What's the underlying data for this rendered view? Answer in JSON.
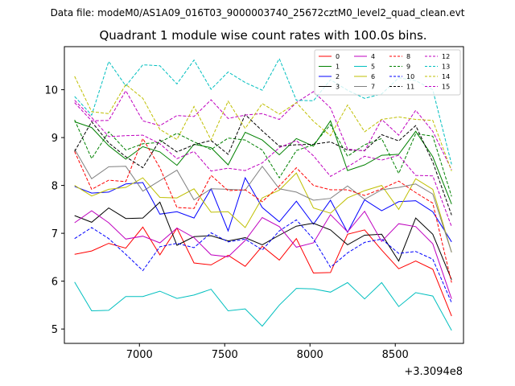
{
  "header": {
    "data_file": "Data file: modeM0/AS1A09_016T03_9000003740_25672cztM0_level2_quad_clean.evt",
    "title": "Quadrant 1 module wise count rates with 100.0s bins."
  },
  "chart_data": {
    "type": "line",
    "title": "Quadrant 1 module wise count rates with 100.0s bins.",
    "xlabel": "",
    "ylabel": "",
    "x_offset_label": "+3.3094e8",
    "xlim": [
      6560,
      8900
    ],
    "ylim": [
      4.7,
      10.9
    ],
    "xticks": [
      7000,
      7500,
      8000,
      8500
    ],
    "yticks": [
      5,
      6,
      7,
      8,
      9,
      10
    ],
    "legend_position": "top-right",
    "x": [
      6620,
      6720,
      6820,
      6920,
      7020,
      7120,
      7220,
      7320,
      7420,
      7520,
      7620,
      7720,
      7820,
      7920,
      8020,
      8120,
      8220,
      8320,
      8420,
      8520,
      8620,
      8720,
      8830
    ],
    "series": [
      {
        "name": "0",
        "color": "#ff0000",
        "dash": "solid",
        "values": [
          6.56,
          6.63,
          6.79,
          6.69,
          7.13,
          6.55,
          7.11,
          6.38,
          6.34,
          6.54,
          6.31,
          6.73,
          6.44,
          6.89,
          6.17,
          6.18,
          6.98,
          7.07,
          6.65,
          6.26,
          6.42,
          6.25,
          5.27
        ]
      },
      {
        "name": "1",
        "color": "#008000",
        "dash": "solid",
        "values": [
          9.33,
          9.21,
          8.83,
          8.55,
          8.81,
          8.7,
          8.42,
          8.86,
          8.79,
          8.43,
          9.11,
          8.95,
          8.64,
          8.98,
          8.82,
          9.35,
          8.31,
          8.43,
          8.63,
          8.65,
          9.13,
          8.6,
          7.61
        ]
      },
      {
        "name": "2",
        "color": "#0000ff",
        "dash": "solid",
        "values": [
          7.98,
          7.84,
          7.86,
          8.03,
          8.06,
          7.4,
          7.45,
          7.32,
          7.93,
          7.05,
          8.16,
          7.54,
          7.24,
          7.67,
          7.19,
          7.69,
          7.02,
          7.7,
          7.47,
          7.66,
          7.68,
          7.45,
          6.82
        ]
      },
      {
        "name": "3",
        "color": "#000000",
        "dash": "solid",
        "values": [
          7.37,
          7.23,
          7.53,
          7.31,
          7.32,
          7.65,
          6.75,
          6.93,
          6.95,
          6.84,
          6.91,
          6.76,
          6.96,
          7.15,
          7.21,
          7.07,
          6.76,
          6.96,
          6.98,
          6.42,
          7.32,
          6.98,
          6.03
        ]
      },
      {
        "name": "4",
        "color": "#bf00bf",
        "dash": "solid",
        "values": [
          7.22,
          7.47,
          7.22,
          6.88,
          6.94,
          6.8,
          7.11,
          6.91,
          6.55,
          6.51,
          6.85,
          7.33,
          7.14,
          6.71,
          6.8,
          7.39,
          7.03,
          7.46,
          6.83,
          7.2,
          7.14,
          6.78,
          5.63
        ]
      },
      {
        "name": "5",
        "color": "#00bfbf",
        "dash": "solid",
        "values": [
          5.98,
          5.38,
          5.39,
          5.68,
          5.68,
          5.79,
          5.64,
          5.71,
          5.83,
          5.38,
          5.42,
          5.06,
          5.5,
          5.85,
          5.84,
          5.77,
          5.97,
          5.63,
          5.97,
          5.47,
          5.76,
          5.69,
          4.97
        ]
      },
      {
        "name": "6",
        "color": "#bfbf00",
        "dash": "solid",
        "values": [
          8.0,
          7.78,
          7.92,
          7.96,
          8.16,
          7.75,
          7.74,
          7.93,
          7.44,
          7.45,
          7.12,
          7.74,
          7.9,
          8.26,
          7.53,
          7.42,
          7.74,
          7.89,
          8.0,
          7.5,
          8.14,
          7.92,
          6.6
        ]
      },
      {
        "name": "7",
        "color": "#808080",
        "dash": "solid",
        "values": [
          8.76,
          8.14,
          8.39,
          8.4,
          7.88,
          8.1,
          8.32,
          7.7,
          7.93,
          7.92,
          7.9,
          8.4,
          7.93,
          7.86,
          7.69,
          7.73,
          7.99,
          7.71,
          7.91,
          7.96,
          8.03,
          7.82,
          6.6
        ]
      },
      {
        "name": "8",
        "color": "#ff0000",
        "dash": "dashed",
        "values": [
          8.71,
          7.92,
          8.11,
          8.08,
          8.98,
          8.37,
          7.54,
          7.52,
          8.21,
          7.89,
          7.91,
          7.66,
          7.99,
          8.37,
          8.0,
          7.91,
          7.91,
          7.79,
          7.93,
          8.09,
          7.85,
          7.63,
          5.97
        ]
      },
      {
        "name": "9",
        "color": "#008000",
        "dash": "dashed",
        "values": [
          9.37,
          8.56,
          9.12,
          8.74,
          8.87,
          8.9,
          9.09,
          8.91,
          8.75,
          8.99,
          8.95,
          8.74,
          8.16,
          8.73,
          8.85,
          9.27,
          8.61,
          8.85,
          8.98,
          8.25,
          9.08,
          9.03,
          7.77
        ]
      },
      {
        "name": "10",
        "color": "#0000ff",
        "dash": "dashed",
        "values": [
          6.89,
          7.12,
          6.89,
          6.56,
          6.22,
          6.72,
          6.79,
          6.7,
          7.01,
          6.82,
          6.88,
          6.65,
          7.05,
          7.28,
          6.88,
          6.29,
          6.59,
          6.81,
          6.88,
          6.58,
          6.62,
          6.46,
          5.55
        ]
      },
      {
        "name": "11",
        "color": "#000000",
        "dash": "dashed",
        "values": [
          8.71,
          9.33,
          8.89,
          8.6,
          8.37,
          8.95,
          8.7,
          8.85,
          8.94,
          8.65,
          9.48,
          9.14,
          8.82,
          8.85,
          8.86,
          8.91,
          8.74,
          8.73,
          9.06,
          8.93,
          9.25,
          8.49,
          7.38
        ]
      },
      {
        "name": "12",
        "color": "#bf00bf",
        "dash": "dashed",
        "values": [
          9.73,
          9.35,
          9.36,
          9.98,
          9.35,
          9.25,
          9.46,
          9.44,
          9.79,
          9.4,
          9.47,
          9.5,
          9.38,
          9.73,
          9.96,
          9.62,
          8.76,
          8.72,
          9.38,
          9.05,
          9.57,
          9.13,
          8.33
        ]
      },
      {
        "name": "13",
        "color": "#00bfbf",
        "dash": "dashed",
        "values": [
          9.86,
          9.47,
          10.59,
          10.08,
          10.52,
          10.5,
          10.12,
          10.62,
          10.01,
          10.37,
          10.15,
          9.99,
          10.65,
          9.78,
          9.77,
          10.21,
          9.99,
          9.82,
          9.91,
          10.25,
          10.19,
          10.0,
          8.44
        ]
      },
      {
        "name": "14",
        "color": "#bfbf00",
        "dash": "dashed",
        "values": [
          10.28,
          9.54,
          9.5,
          10.11,
          9.82,
          9.17,
          8.96,
          9.65,
          8.95,
          9.76,
          9.19,
          9.71,
          9.49,
          9.73,
          9.34,
          9.04,
          9.68,
          9.12,
          9.38,
          9.43,
          9.38,
          9.36,
          8.3
        ]
      },
      {
        "name": "15",
        "color": "#bf00bf",
        "dash": "dashed",
        "values": [
          9.78,
          9.42,
          9.02,
          9.04,
          9.05,
          8.87,
          8.56,
          8.71,
          8.3,
          8.36,
          8.31,
          8.47,
          8.79,
          8.94,
          8.62,
          8.19,
          8.39,
          8.61,
          8.53,
          8.63,
          8.21,
          8.2,
          7.14
        ]
      }
    ]
  }
}
